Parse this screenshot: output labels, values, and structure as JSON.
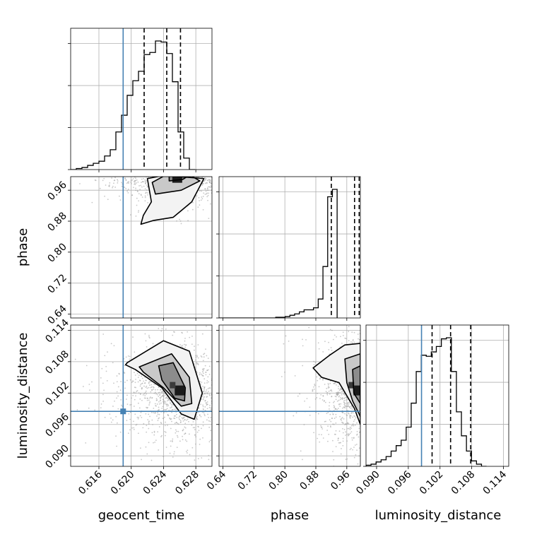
{
  "chart_data": {
    "type": "corner",
    "title": "",
    "parameters": [
      {
        "name": "geocent_time",
        "label": "geocent_time",
        "range": [
          0.6125,
          0.63
        ],
        "ticks": [
          0.616,
          0.62,
          0.624,
          0.628
        ],
        "tick_labels": [
          "0.616",
          "0.620",
          "0.624",
          "0.628"
        ],
        "truth": 0.619
      },
      {
        "name": "phase",
        "label": "phase",
        "range": [
          0.63,
          0.995
        ],
        "ticks": [
          0.64,
          0.72,
          0.8,
          0.88,
          0.96
        ],
        "tick_labels": [
          "0.64",
          "0.72",
          "0.80",
          "0.88",
          "0.96"
        ],
        "truth": null
      },
      {
        "name": "luminosity_distance",
        "label": "luminosity_distance",
        "range": [
          0.088,
          0.115
        ],
        "ticks": [
          0.09,
          0.096,
          0.102,
          0.108,
          0.114
        ],
        "tick_labels": [
          "0.090",
          "0.096",
          "0.102",
          "0.108",
          "0.114"
        ],
        "truth": 0.0985
      }
    ],
    "histograms": [
      {
        "parameter": "geocent_time",
        "edges_start": 0.6125,
        "bin_width": 0.0007,
        "counts": [
          0,
          1,
          2,
          4,
          6,
          8,
          13,
          19,
          36,
          52,
          71,
          85,
          94,
          110,
          112,
          123,
          122,
          111,
          84,
          36,
          11,
          0
        ],
        "quantiles": [
          0.6216,
          0.6244,
          0.6261
        ],
        "truth_line": 0.619
      },
      {
        "parameter": "phase",
        "edges_start": 0.63,
        "bin_width": 0.0122,
        "counts": [
          0,
          0,
          0,
          0,
          0,
          0,
          0,
          0,
          0,
          0,
          0,
          0,
          1,
          1,
          2,
          4,
          6,
          9,
          12,
          12,
          15,
          28,
          76,
          179,
          190
        ],
        "quantiles": [
          0.92,
          0.98,
          0.992
        ],
        "truth_line": null
      },
      {
        "parameter": "luminosity_distance",
        "edges_start": 0.088,
        "bin_width": 0.00095,
        "counts": [
          1,
          2,
          4,
          6,
          9,
          14,
          19,
          24,
          36,
          58,
          87,
          102,
          101,
          105,
          110,
          117,
          118,
          87,
          50,
          28,
          14,
          5,
          2,
          0
        ],
        "quantiles": [
          0.1005,
          0.104,
          0.1078
        ],
        "truth_line": 0.0985
      }
    ],
    "contours": [
      {
        "x": "geocent_time",
        "y": "phase",
        "levels": [
          [
            [
              0.6212,
              0.872
            ],
            [
              0.6228,
              0.882
            ],
            [
              0.6252,
              0.89
            ],
            [
              0.6275,
              0.93
            ],
            [
              0.629,
              0.99
            ],
            [
              0.624,
              0.998
            ],
            [
              0.622,
              0.99
            ],
            [
              0.6225,
              0.93
            ],
            [
              0.6215,
              0.895
            ]
          ],
          [
            [
              0.623,
              0.95
            ],
            [
              0.6262,
              0.96
            ],
            [
              0.6285,
              0.984
            ],
            [
              0.6275,
              0.996
            ],
            [
              0.624,
              0.996
            ],
            [
              0.6226,
              0.98
            ]
          ],
          [
            [
              0.6247,
              0.984
            ],
            [
              0.6264,
              0.988
            ],
            [
              0.627,
              0.996
            ],
            [
              0.6247,
              0.996
            ]
          ]
        ]
      },
      {
        "x": "geocent_time",
        "y": "luminosity_distance",
        "levels": [
          [
            [
              0.6195,
              0.1078
            ],
            [
              0.624,
              0.112
            ],
            [
              0.6272,
              0.11
            ],
            [
              0.6288,
              0.102
            ],
            [
              0.6278,
              0.097
            ],
            [
              0.6262,
              0.098
            ],
            [
              0.6238,
              0.103
            ],
            [
              0.6205,
              0.1065
            ],
            [
              0.6193,
              0.1074
            ]
          ],
          [
            [
              0.621,
              0.107
            ],
            [
              0.625,
              0.1095
            ],
            [
              0.6272,
              0.105
            ],
            [
              0.6275,
              0.1
            ],
            [
              0.6262,
              0.0995
            ],
            [
              0.624,
              0.103
            ],
            [
              0.6215,
              0.106
            ]
          ],
          [
            [
              0.6234,
              0.1072
            ],
            [
              0.6252,
              0.1078
            ],
            [
              0.6267,
              0.103
            ],
            [
              0.6266,
              0.1005
            ],
            [
              0.6254,
              0.101
            ],
            [
              0.6238,
              0.1045
            ]
          ]
        ]
      },
      {
        "x": "phase",
        "y": "luminosity_distance",
        "levels": [
          [
            [
              0.873,
              0.1068
            ],
            [
              0.915,
              0.1092
            ],
            [
              0.955,
              0.1112
            ],
            [
              0.995,
              0.1115
            ],
            [
              0.995,
              0.096
            ],
            [
              0.98,
              0.099
            ],
            [
              0.94,
              0.104
            ],
            [
              0.895,
              0.105
            ]
          ],
          [
            [
              0.955,
              0.1085
            ],
            [
              0.995,
              0.1095
            ],
            [
              0.995,
              0.0975
            ],
            [
              0.975,
              0.1005
            ],
            [
              0.96,
              0.104
            ]
          ],
          [
            [
              0.975,
              0.1065
            ],
            [
              0.995,
              0.1072
            ],
            [
              0.995,
              0.1
            ],
            [
              0.978,
              0.102
            ]
          ]
        ]
      }
    ],
    "density_peaks": [
      {
        "x": "geocent_time",
        "y": "phase",
        "peak": [
          0.6257,
          0.992
        ],
        "spread": [
          0.0014,
          0.012
        ]
      },
      {
        "x": "geocent_time",
        "y": "luminosity_distance",
        "peak": [
          0.626,
          0.1025
        ],
        "spread": [
          0.0014,
          0.0018
        ]
      },
      {
        "x": "phase",
        "y": "luminosity_distance",
        "peak": [
          0.99,
          0.1025
        ],
        "spread": [
          0.02,
          0.0022
        ]
      }
    ],
    "truth_point": {
      "x": "geocent_time",
      "y": "luminosity_distance",
      "value": [
        0.619,
        0.0985
      ]
    },
    "colors": {
      "truth": "#4682b4",
      "grid": "#b0b0b0",
      "line": "#000000",
      "sample": "#9a9a9a"
    },
    "grid": true,
    "legend": "none"
  }
}
